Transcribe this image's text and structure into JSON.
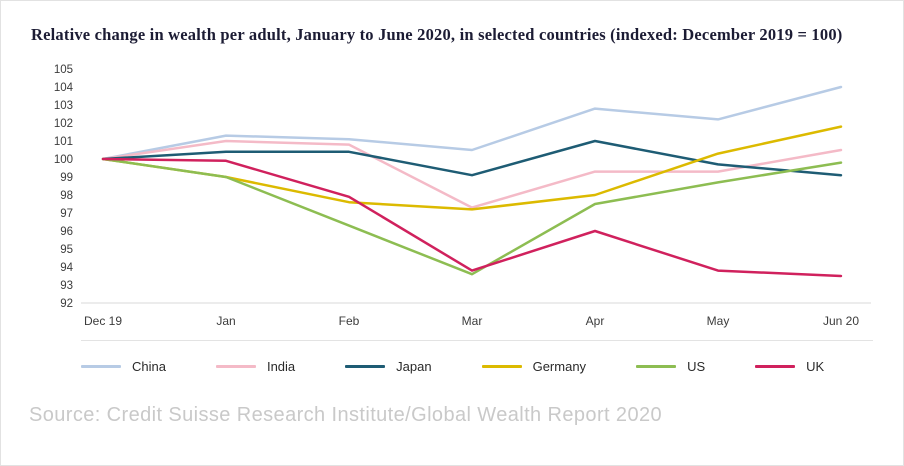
{
  "title": "Relative change in wealth per adult, January to June 2020, in selected countries (indexed: December 2019 = 100)",
  "source": "Source: Credit Suisse Research Institute/Global Wealth Report 2020",
  "chart_data": {
    "type": "line",
    "title": "Relative change in wealth per adult, January to June 2020, in selected countries (indexed: December 2019 = 100)",
    "categories": [
      "Dec 19",
      "Jan",
      "Feb",
      "Mar",
      "Apr",
      "May",
      "Jun 20"
    ],
    "series": [
      {
        "name": "China",
        "color": "#b7cbe5",
        "values": [
          100,
          101.3,
          101.1,
          100.5,
          102.8,
          102.2,
          104.0
        ]
      },
      {
        "name": "India",
        "color": "#f4bac7",
        "values": [
          100,
          101.0,
          100.8,
          97.3,
          99.3,
          99.3,
          100.5
        ]
      },
      {
        "name": "Japan",
        "color": "#1e5c74",
        "values": [
          100,
          100.4,
          100.4,
          99.1,
          101.0,
          99.7,
          99.1
        ]
      },
      {
        "name": "Germany",
        "color": "#dcba00",
        "values": [
          100,
          99.0,
          97.6,
          97.2,
          98.0,
          100.3,
          101.8
        ]
      },
      {
        "name": "US",
        "color": "#8dbd52",
        "values": [
          100,
          99.0,
          96.3,
          93.6,
          97.5,
          98.7,
          99.8
        ]
      },
      {
        "name": "UK",
        "color": "#d0215d",
        "values": [
          100,
          99.9,
          97.9,
          93.8,
          96.0,
          93.8,
          93.5
        ]
      }
    ],
    "ylim": [
      92,
      105
    ],
    "yticks": [
      92,
      93,
      94,
      95,
      96,
      97,
      98,
      99,
      100,
      101,
      102,
      103,
      104,
      105
    ],
    "grid": false,
    "legend_position": "bottom",
    "axis_color": "#d9d9d9",
    "tick_label_color": "#3c3c3c"
  }
}
